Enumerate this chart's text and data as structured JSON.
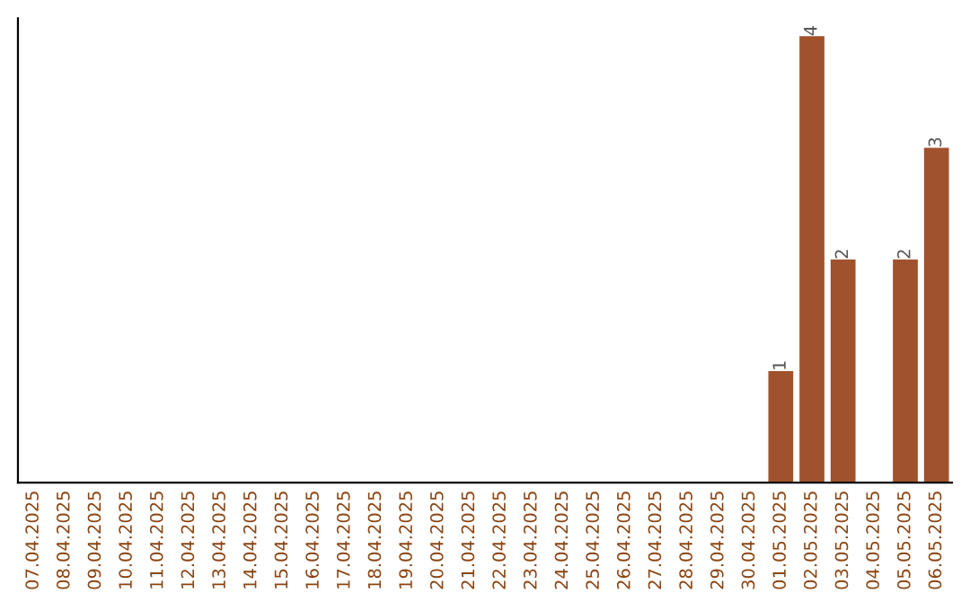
{
  "chart_data": {
    "type": "bar",
    "categories": [
      "07.04.2025",
      "08.04.2025",
      "09.04.2025",
      "10.04.2025",
      "11.04.2025",
      "12.04.2025",
      "13.04.2025",
      "14.04.2025",
      "15.04.2025",
      "16.04.2025",
      "17.04.2025",
      "18.04.2025",
      "19.04.2025",
      "20.04.2025",
      "21.04.2025",
      "22.04.2025",
      "23.04.2025",
      "24.04.2025",
      "25.04.2025",
      "26.04.2025",
      "27.04.2025",
      "28.04.2025",
      "29.04.2025",
      "30.04.2025",
      "01.05.2025",
      "02.05.2025",
      "03.05.2025",
      "04.05.2025",
      "05.05.2025",
      "06.05.2025"
    ],
    "values": [
      null,
      null,
      null,
      null,
      null,
      null,
      null,
      null,
      null,
      null,
      null,
      null,
      null,
      null,
      null,
      null,
      null,
      null,
      null,
      null,
      null,
      null,
      null,
      null,
      1,
      4,
      2,
      null,
      2,
      3
    ],
    "data_labels": true,
    "color": "#a0522d",
    "ylim": [
      0,
      4.16
    ],
    "tick_labels": "x",
    "grid": false,
    "legend": false
  }
}
